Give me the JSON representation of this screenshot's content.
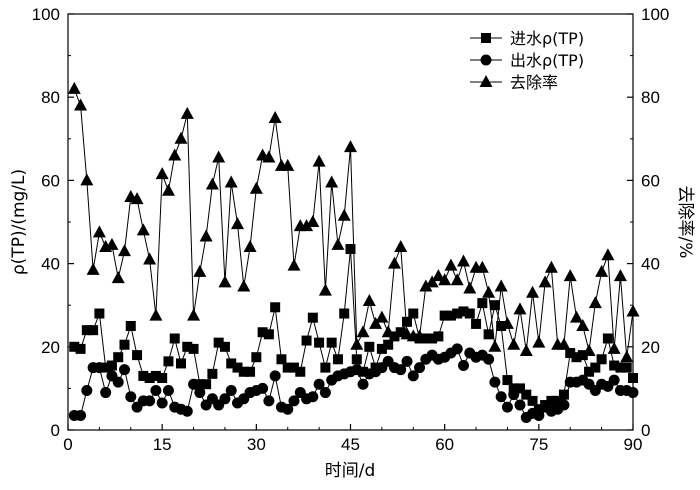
{
  "chart_data": {
    "type": "line",
    "xlabel": "时间/d",
    "ylabel_left": "ρ(TP)/(mg/L)",
    "ylabel_right": "去除率/%",
    "xlim": [
      0,
      90
    ],
    "ylim_left": [
      0,
      100
    ],
    "ylim_right": [
      0,
      100
    ],
    "x_ticks": [
      0,
      15,
      30,
      45,
      60,
      75,
      90
    ],
    "y_ticks_left": [
      0,
      20,
      40,
      60,
      80,
      100
    ],
    "y_ticks_right": [
      0,
      20,
      40,
      60,
      80,
      100
    ],
    "grid": false,
    "legend_position": "top-right",
    "x": [
      1,
      2,
      3,
      4,
      5,
      6,
      7,
      8,
      9,
      10,
      11,
      12,
      13,
      14,
      15,
      16,
      17,
      18,
      19,
      20,
      21,
      22,
      23,
      24,
      25,
      26,
      27,
      28,
      29,
      30,
      31,
      32,
      33,
      34,
      35,
      36,
      37,
      38,
      39,
      40,
      41,
      42,
      43,
      44,
      45,
      46,
      47,
      48,
      49,
      50,
      51,
      52,
      53,
      54,
      55,
      56,
      57,
      58,
      59,
      60,
      61,
      62,
      63,
      64,
      65,
      66,
      67,
      68,
      69,
      70,
      71,
      72,
      73,
      74,
      75,
      76,
      77,
      78,
      79,
      80,
      81,
      82,
      83,
      84,
      85,
      86,
      87,
      88,
      89,
      90
    ],
    "series": [
      {
        "name": "进水ρ(TP)",
        "marker": "square",
        "axis": "left",
        "values": [
          20,
          19.5,
          24,
          24,
          28,
          15,
          15.5,
          17.5,
          20.5,
          25,
          18,
          13,
          12.5,
          13,
          12.5,
          16.5,
          22,
          16,
          20,
          19.5,
          11,
          11,
          13.5,
          21,
          20,
          16,
          15,
          14,
          14,
          17.5,
          23.5,
          23,
          29.5,
          17,
          15,
          15,
          14,
          21.5,
          27,
          21,
          15,
          21,
          17,
          28,
          43.5,
          17,
          14,
          20,
          15,
          19.5,
          20.5,
          22.5,
          23.5,
          26,
          28,
          22,
          22,
          22,
          22.5,
          27.5,
          27.5,
          28,
          28.5,
          28,
          25.5,
          30.5,
          23,
          30,
          25,
          12,
          10,
          10,
          8.5,
          7,
          5,
          6,
          7,
          7,
          8.5,
          18.5,
          17.5,
          18,
          14,
          15,
          17,
          22,
          15.5,
          15,
          15,
          12.5
        ]
      },
      {
        "name": "出水ρ(TP)",
        "marker": "circle",
        "axis": "left",
        "values": [
          3.5,
          3.5,
          9.5,
          15,
          15,
          9,
          13,
          11.5,
          14.5,
          8,
          5.5,
          7,
          7,
          9.5,
          6.5,
          9.5,
          5.5,
          5,
          4.5,
          11,
          9,
          6,
          7.5,
          6,
          7.5,
          9.5,
          6.5,
          7.5,
          9,
          9.5,
          10,
          7,
          13,
          5.5,
          5,
          7,
          9,
          7.5,
          8,
          11,
          9,
          12,
          13,
          13.5,
          14,
          14.5,
          11,
          13.5,
          14,
          15,
          16.5,
          15,
          14.5,
          16.5,
          13,
          15,
          17,
          18,
          17,
          17.5,
          18.5,
          19.5,
          15.5,
          18.5,
          17.5,
          18,
          17,
          11.5,
          8,
          5.5,
          8.5,
          6,
          3,
          4,
          3.5,
          5.5,
          4.5,
          5,
          6,
          11.5,
          11.5,
          12,
          11,
          9.5,
          11,
          10.5,
          12,
          9.5,
          9.5,
          9
        ]
      },
      {
        "name": "去除率",
        "marker": "triangle",
        "axis": "right",
        "values": [
          82,
          78,
          60,
          38.5,
          47.5,
          44,
          44.5,
          36.5,
          43,
          56,
          55.5,
          48,
          41,
          27.5,
          61.5,
          57.5,
          66,
          70,
          76,
          27.5,
          38,
          46.5,
          59,
          65.5,
          35.5,
          59.5,
          49.5,
          34.5,
          44,
          58,
          66,
          65.5,
          75,
          63.5,
          63.5,
          39.5,
          49,
          49,
          50,
          64.5,
          33.5,
          59.5,
          44.5,
          51.5,
          68,
          20.5,
          23.5,
          31,
          25.5,
          27,
          23.5,
          40,
          44,
          23,
          22.5,
          22.5,
          34.5,
          35.5,
          37,
          36,
          39.5,
          36,
          40.5,
          34,
          39,
          39,
          33,
          20,
          34.5,
          25.5,
          20.5,
          29,
          19,
          33,
          21,
          35.5,
          39,
          20.5,
          20.5,
          37,
          27,
          25,
          19,
          30.5,
          38,
          42,
          19.5,
          37,
          17.5,
          28.5
        ]
      }
    ]
  }
}
